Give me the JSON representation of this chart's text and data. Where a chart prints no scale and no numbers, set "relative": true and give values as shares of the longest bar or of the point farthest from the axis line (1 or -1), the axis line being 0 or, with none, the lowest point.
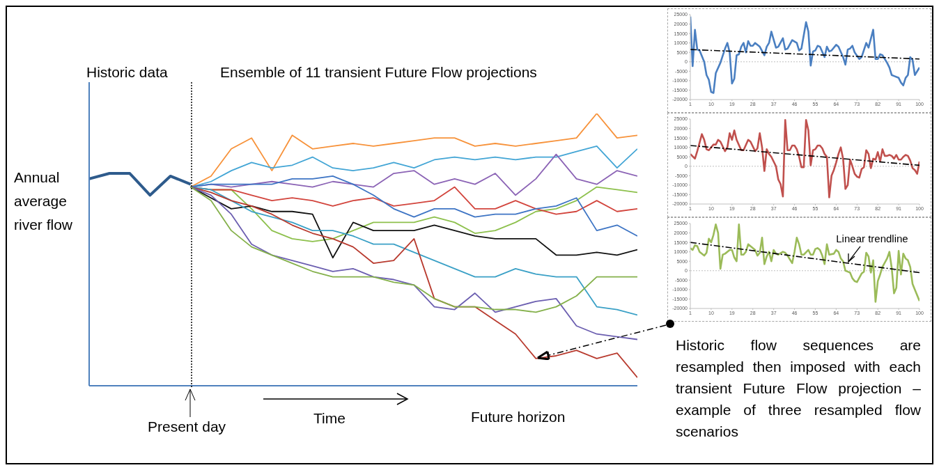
{
  "chart_data": [
    {
      "type": "line",
      "ylabel": "Annual average river flow",
      "relative": true,
      "marker": "none",
      "line_style": "solid",
      "annotations": [
        "Historic data",
        "Ensemble of 11 transient Future Flow projections",
        "Time",
        "Future horizon",
        "Historic flow sequences are resampled then imposed with each transient Future Flow projection – example of three resampled flow scenarios",
        "Present day"
      ],
      "categories": [
        null,
        null,
        null,
        null,
        null,
        null,
        null,
        null,
        null,
        null,
        null,
        null,
        null,
        null,
        null,
        null,
        null,
        null,
        null,
        null,
        null,
        null,
        null,
        null,
        null,
        null,
        null,
        null
      ],
      "series": [
        {
          "color": "#2e5b8c",
          "values": [
            0.76,
            0.78,
            0.78,
            0.7,
            0.77,
            0.74,
            null,
            null,
            null,
            null,
            null,
            null,
            null,
            null,
            null,
            null,
            null,
            null,
            null,
            null,
            null,
            null,
            null,
            null,
            null,
            null,
            null,
            null
          ]
        },
        {
          "color": "#f7923a",
          "values": [
            null,
            null,
            null,
            null,
            null,
            0.73,
            0.77,
            0.87,
            0.91,
            0.79,
            0.92,
            0.87,
            0.88,
            0.89,
            0.88,
            0.89,
            0.9,
            0.91,
            0.91,
            0.88,
            0.89,
            0.88,
            0.89,
            0.9,
            0.91,
            1,
            0.91,
            0.92
          ]
        },
        {
          "color": "#42a5d5",
          "values": [
            null,
            null,
            null,
            null,
            null,
            0.73,
            0.75,
            0.79,
            0.82,
            0.8,
            0.81,
            0.84,
            0.8,
            0.79,
            0.8,
            0.82,
            0.8,
            0.83,
            0.84,
            0.83,
            0.84,
            0.83,
            0.84,
            0.84,
            0.86,
            0.88,
            0.8,
            0.87
          ]
        },
        {
          "color": "#8b63b5",
          "values": [
            null,
            null,
            null,
            null,
            null,
            0.73,
            0.74,
            0.73,
            0.74,
            0.75,
            0.74,
            0.73,
            0.75,
            0.74,
            0.73,
            0.78,
            0.79,
            0.74,
            0.76,
            0.74,
            0.78,
            0.7,
            0.76,
            0.85,
            0.76,
            0.74,
            0.79,
            0.77
          ]
        },
        {
          "color": "#8dc04c",
          "values": [
            null,
            null,
            null,
            null,
            null,
            0.73,
            0.72,
            0.72,
            0.65,
            0.57,
            0.54,
            0.53,
            0.54,
            0.57,
            0.6,
            0.6,
            0.6,
            0.62,
            0.6,
            0.56,
            0.57,
            0.6,
            0.64,
            0.65,
            0.68,
            0.73,
            0.72,
            0.71
          ]
        },
        {
          "color": "#d2443c",
          "values": [
            null,
            null,
            null,
            null,
            null,
            0.73,
            0.72,
            0.72,
            0.7,
            0.68,
            0.69,
            0.68,
            0.66,
            0.68,
            0.69,
            0.66,
            0.67,
            0.68,
            0.73,
            0.65,
            0.65,
            0.68,
            0.65,
            0.63,
            0.64,
            0.68,
            0.64,
            0.65
          ]
        },
        {
          "color": "#3d74c4",
          "values": [
            null,
            null,
            null,
            null,
            null,
            0.73,
            0.74,
            0.74,
            0.74,
            0.74,
            0.76,
            0.76,
            0.77,
            0.74,
            0.7,
            0.65,
            0.62,
            0.65,
            0.65,
            0.62,
            0.63,
            0.63,
            0.65,
            0.66,
            0.69,
            0.57,
            0.59,
            0.55
          ]
        },
        {
          "color": "#111111",
          "values": [
            null,
            null,
            null,
            null,
            null,
            0.73,
            0.69,
            0.65,
            0.66,
            0.64,
            0.64,
            0.63,
            0.47,
            0.6,
            0.57,
            0.57,
            0.57,
            0.59,
            0.57,
            0.55,
            0.54,
            0.54,
            0.54,
            0.48,
            0.48,
            0.49,
            0.48,
            0.5
          ]
        },
        {
          "color": "#3aa0c6",
          "values": [
            null,
            null,
            null,
            null,
            null,
            0.73,
            0.72,
            0.68,
            0.64,
            0.62,
            0.6,
            0.57,
            0.57,
            0.55,
            0.52,
            0.52,
            0.49,
            0.46,
            0.43,
            0.4,
            0.4,
            0.43,
            0.41,
            0.4,
            0.4,
            0.29,
            0.28,
            0.26
          ]
        },
        {
          "color": "#b83a2e",
          "values": [
            null,
            null,
            null,
            null,
            null,
            0.73,
            0.71,
            0.68,
            0.66,
            0.63,
            0.59,
            0.56,
            0.54,
            0.51,
            0.45,
            0.46,
            0.54,
            0.32,
            0.29,
            0.29,
            0.24,
            0.19,
            0.1,
            0.11,
            0.13,
            0.1,
            0.12,
            0.03
          ]
        },
        {
          "color": "#6b5eb0",
          "values": [
            null,
            null,
            null,
            null,
            null,
            0.73,
            0.7,
            0.63,
            0.52,
            0.48,
            0.46,
            0.44,
            0.42,
            0.43,
            0.4,
            0.39,
            0.37,
            0.29,
            0.28,
            0.34,
            0.27,
            0.29,
            0.31,
            0.32,
            0.22,
            0.19,
            0.18,
            0.17
          ]
        },
        {
          "color": "#84b04a",
          "values": [
            null,
            null,
            null,
            null,
            null,
            0.73,
            0.68,
            0.57,
            0.51,
            0.48,
            0.45,
            0.42,
            0.4,
            0.4,
            0.4,
            0.38,
            0.37,
            0.32,
            0.29,
            0.29,
            0.28,
            0.28,
            0.27,
            0.29,
            0.33,
            0.4,
            0.4,
            0.4
          ]
        }
      ]
    },
    {
      "type": "line",
      "xlim": [
        1,
        100
      ],
      "xticks": [
        1,
        10,
        19,
        28,
        37,
        46,
        55,
        64,
        73,
        82,
        91,
        100
      ],
      "ylim": [
        -20000,
        25000
      ],
      "yticks": [
        -20000,
        -15000,
        -10000,
        -5000,
        0,
        5000,
        10000,
        15000,
        20000,
        25000
      ],
      "marker": "none",
      "ref_lines": [
        {
          "axis": "y",
          "value": 0,
          "color": "#bfbfbf",
          "line_style": "dotted"
        }
      ],
      "series": [
        {
          "color": "#4a7fc1",
          "x": [
            1,
            2,
            3,
            4,
            5,
            7,
            8,
            9,
            10,
            11,
            12,
            14,
            16,
            17,
            18,
            19,
            20,
            21,
            22,
            23,
            24,
            25,
            26,
            27,
            28,
            29,
            31,
            33,
            34,
            35,
            36,
            38,
            39,
            41,
            42,
            43,
            45,
            47,
            48,
            49,
            51,
            52,
            53,
            54,
            55,
            56,
            57,
            59,
            60,
            61,
            62,
            64,
            65,
            67,
            68,
            69,
            70,
            71,
            72,
            74,
            75,
            77,
            78,
            80,
            81,
            82,
            83,
            84,
            86,
            87,
            88,
            89,
            91,
            92,
            93,
            94,
            95,
            96,
            97,
            98,
            100
          ],
          "values": [
            24000,
            -2300,
            17000,
            6500,
            6000,
            0,
            -7000,
            -9500,
            -16000,
            -16500,
            -6000,
            -500,
            7000,
            10000,
            5000,
            -11500,
            -9000,
            3500,
            4000,
            8000,
            10000,
            5000,
            11000,
            8500,
            8500,
            10000,
            8000,
            3500,
            8000,
            10000,
            16000,
            7500,
            8000,
            12500,
            6500,
            7000,
            11500,
            10000,
            6000,
            7000,
            21000,
            16000,
            -2000,
            5500,
            6000,
            8500,
            8000,
            2500,
            8000,
            5500,
            6000,
            9000,
            8000,
            2500,
            -1500,
            6500,
            7000,
            8500,
            5000,
            1500,
            2500,
            10000,
            7500,
            17000,
            1500,
            1500,
            4000,
            3500,
            -500,
            -3000,
            -7000,
            -7500,
            -8500,
            -11000,
            -12500,
            -8500,
            -7000,
            2500,
            1000,
            -7000,
            -3000
          ]
        },
        {
          "type": "line",
          "color": "#000000",
          "line_style": "dashed",
          "x": [
            1,
            100
          ],
          "values": [
            6500,
            1500
          ]
        }
      ]
    },
    {
      "type": "line",
      "xlim": [
        1,
        100
      ],
      "xticks": [
        1,
        10,
        19,
        28,
        37,
        46,
        55,
        64,
        73,
        82,
        91,
        100
      ],
      "ylim": [
        -20000,
        25000
      ],
      "yticks": [
        -20000,
        -15000,
        -10000,
        -5000,
        0,
        5000,
        10000,
        15000,
        20000,
        25000
      ],
      "marker": "none",
      "ref_lines": [
        {
          "axis": "y",
          "value": 0,
          "color": "#bfbfbf",
          "line_style": "dotted"
        }
      ],
      "series": [
        {
          "color": "#c0504d",
          "x": [
            1,
            3,
            4,
            6,
            7,
            8,
            9,
            11,
            12,
            13,
            14,
            16,
            17,
            18,
            19,
            20,
            21,
            23,
            24,
            26,
            27,
            29,
            30,
            31,
            32,
            33,
            34,
            35,
            36,
            38,
            39,
            40,
            41,
            42,
            43,
            44,
            45,
            46,
            47,
            48,
            49,
            50,
            51,
            52,
            53,
            54,
            55,
            56,
            57,
            58,
            59,
            60,
            61,
            62,
            63,
            64,
            65,
            66,
            67,
            68,
            69,
            70,
            71,
            72,
            73,
            74,
            75,
            76,
            77,
            78,
            79,
            80,
            81,
            82,
            83,
            84,
            85,
            86,
            87,
            88,
            89,
            90,
            91,
            92,
            93,
            94,
            95,
            96,
            97,
            98,
            99,
            100
          ],
          "values": [
            6500,
            4000,
            8000,
            17000,
            14000,
            9000,
            8500,
            11500,
            11500,
            14000,
            13000,
            8000,
            10000,
            17500,
            14000,
            19000,
            14000,
            8500,
            8500,
            14000,
            13000,
            8000,
            9500,
            17500,
            10000,
            -2500,
            9000,
            6500,
            5000,
            0,
            -7000,
            -9500,
            -16000,
            24500,
            8500,
            8500,
            11000,
            11000,
            9000,
            5000,
            -500,
            -500,
            24500,
            19000,
            500,
            8500,
            9000,
            11000,
            11000,
            9500,
            6500,
            5000,
            -16500,
            -5000,
            -2000,
            2000,
            6500,
            10000,
            4000,
            -12000,
            -10000,
            3500,
            0,
            -4000,
            -5500,
            -6000,
            -1500,
            -500,
            8500,
            6500,
            -1000,
            4000,
            3500,
            7500,
            2500,
            9000,
            5500,
            5500,
            6000,
            5500,
            4000,
            6000,
            3500,
            3500,
            5000,
            6000,
            5500,
            3000,
            -1000,
            -2000,
            -4000,
            2500
          ]
        },
        {
          "type": "line",
          "color": "#000000",
          "line_style": "dashed",
          "x": [
            1,
            100
          ],
          "values": [
            11000,
            500
          ]
        }
      ]
    },
    {
      "type": "line",
      "xlim": [
        1,
        100
      ],
      "xticks": [
        1,
        10,
        19,
        28,
        37,
        46,
        55,
        64,
        73,
        82,
        91,
        100
      ],
      "ylim": [
        -20000,
        25000
      ],
      "yticks": [
        -20000,
        -15000,
        -10000,
        -5000,
        0,
        5000,
        10000,
        15000,
        20000,
        25000
      ],
      "marker": "none",
      "annotations": [
        {
          "text": "Linear trendline",
          "x": 69,
          "y": 4000
        }
      ],
      "ref_lines": [
        {
          "axis": "y",
          "value": 0,
          "color": "#bfbfbf",
          "line_style": "dotted"
        }
      ],
      "series": [
        {
          "color": "#9bbb59",
          "x": [
            1,
            2,
            3,
            4,
            5,
            7,
            8,
            9,
            10,
            11,
            12,
            13,
            14,
            15,
            16,
            18,
            19,
            20,
            21,
            22,
            23,
            24,
            25,
            26,
            27,
            29,
            30,
            31,
            32,
            33,
            34,
            35,
            36,
            37,
            38,
            39,
            41,
            42,
            43,
            44,
            45,
            46,
            47,
            48,
            49,
            50,
            52,
            53,
            54,
            55,
            56,
            57,
            58,
            59,
            60,
            61,
            63,
            64,
            65,
            66,
            67,
            68,
            69,
            70,
            71,
            72,
            73,
            75,
            76,
            77,
            78,
            79,
            80,
            81,
            82,
            83,
            84,
            86,
            87,
            88,
            89,
            90,
            91,
            92,
            93,
            94,
            95,
            96,
            97,
            98,
            100
          ],
          "values": [
            12000,
            11000,
            13500,
            13000,
            10000,
            8000,
            9500,
            17000,
            15000,
            19000,
            24500,
            20000,
            1000,
            8500,
            9000,
            11000,
            11000,
            7000,
            5000,
            24500,
            8500,
            8500,
            10000,
            14000,
            13000,
            11000,
            8000,
            9500,
            17500,
            3500,
            7500,
            10000,
            5000,
            11000,
            9000,
            8500,
            10000,
            9500,
            8000,
            6000,
            4000,
            10000,
            17500,
            14000,
            8500,
            8500,
            11000,
            8500,
            8500,
            11500,
            12000,
            11000,
            8000,
            3500,
            14000,
            8500,
            9000,
            11000,
            10000,
            6500,
            5000,
            0,
            -500,
            -1000,
            -4000,
            -5500,
            -6000,
            -1500,
            -500,
            9500,
            7500,
            -1000,
            5500,
            -16500,
            -5500,
            -2000,
            2000,
            6500,
            10000,
            1500,
            -12000,
            -9000,
            10500,
            -2000,
            9000,
            6500,
            5500,
            2000,
            -7000,
            -10000,
            -16000
          ]
        },
        {
          "type": "line",
          "color": "#000000",
          "line_style": "dashed",
          "x": [
            1,
            100
          ],
          "values": [
            15000,
            -1000
          ]
        }
      ]
    }
  ]
}
